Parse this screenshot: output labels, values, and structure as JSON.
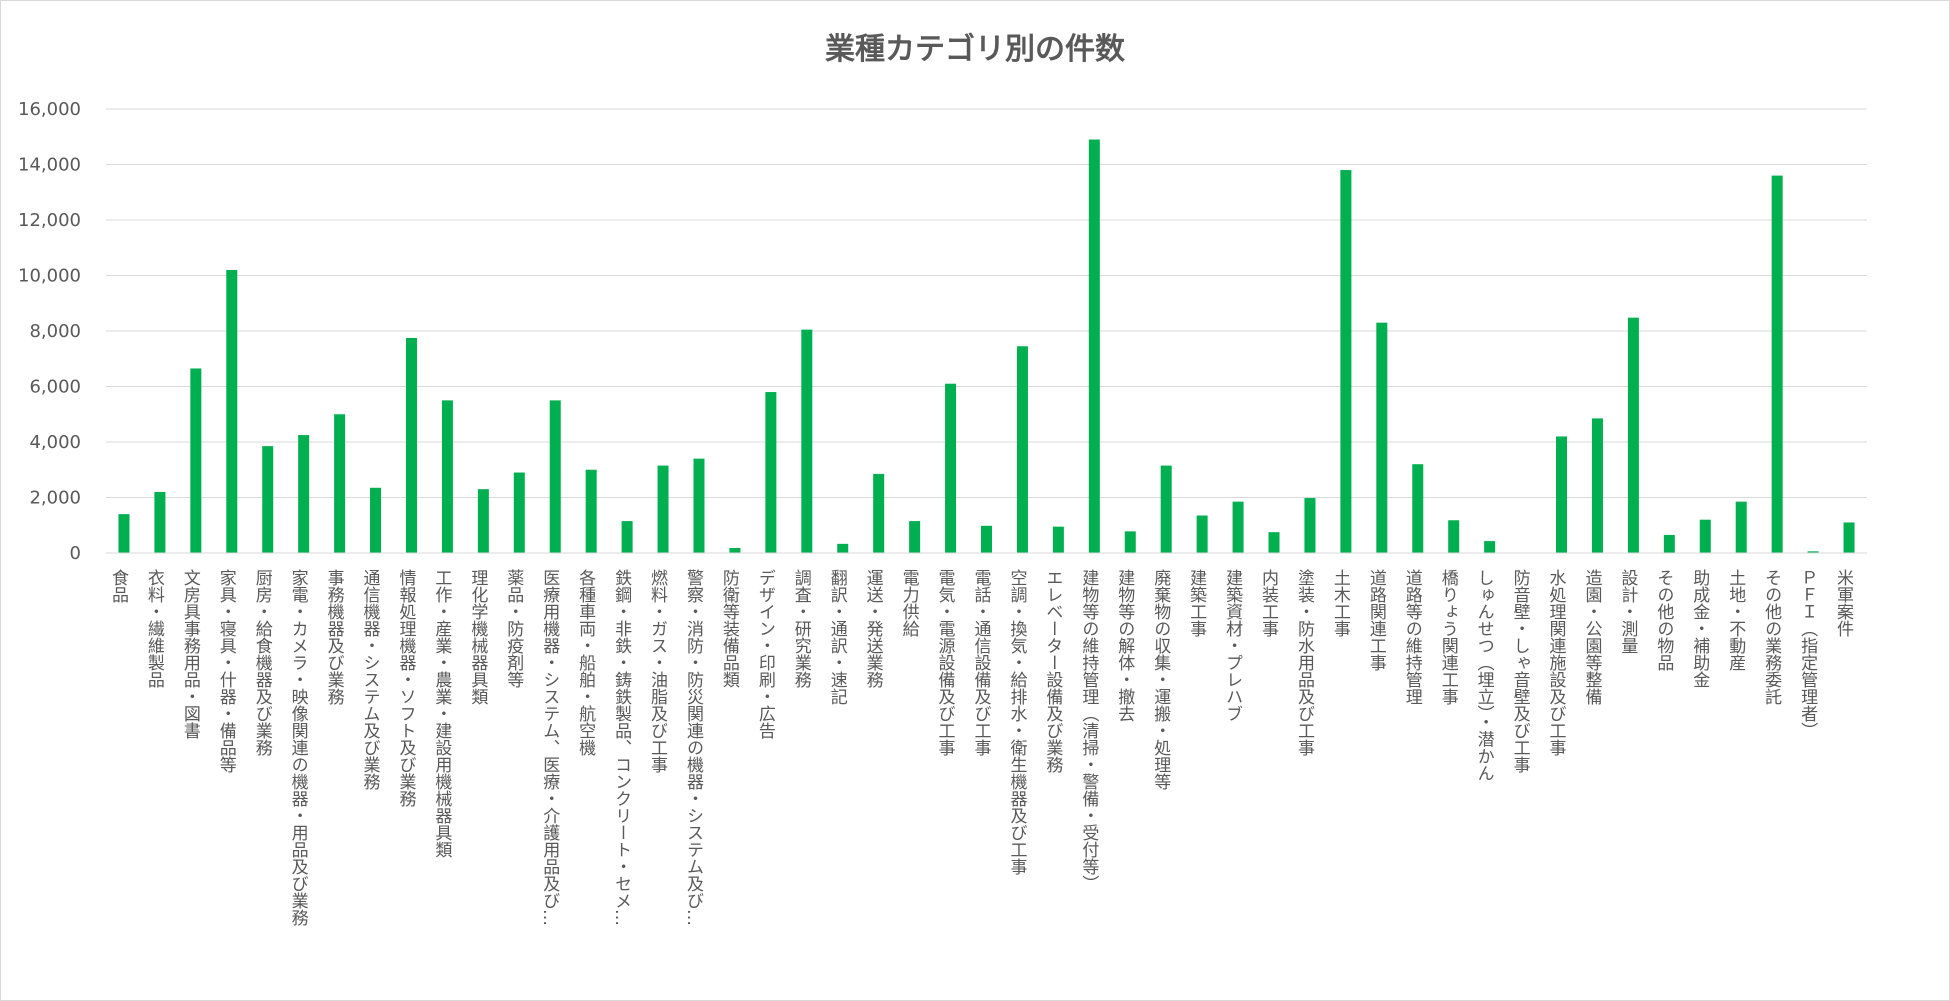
{
  "chart_data": {
    "type": "bar",
    "title": "業種カテゴリ別の件数",
    "xlabel": "",
    "ylabel": "",
    "ylim": [
      0,
      16000
    ],
    "yticks": [
      "0",
      "2,000",
      "4,000",
      "6,000",
      "8,000",
      "10,000",
      "12,000",
      "14,000",
      "16,000"
    ],
    "grid": true,
    "legend": "none",
    "bar_color": "#00b050",
    "categories": [
      "食品",
      "衣料・繊維製品",
      "文房具事務用品・図書",
      "家具・寝具・什器・備品等",
      "厨房・給食機器及び業務",
      "家電・カメラ・映像関連の機器・用品及び業務",
      "事務機器及び業務",
      "通信機器・システム及び業務",
      "情報処理機器・ソフト及び業務",
      "工作・産業・農業・建設用機械器具類",
      "理化学機械器具類",
      "薬品・防疫剤等",
      "医療用機器・システム、医療・介護用品及び…",
      "各種車両・船舶・航空機",
      "鉄鋼・非鉄・鋳鉄製品、コンクリート・セメ…",
      "燃料・ガス・油脂及び工事",
      "警察・消防・防災関連の機器・システム及び…",
      "防衛等装備品類",
      "デザイン・印刷・広告",
      "調査・研究業務",
      "翻訳・通訳・速記",
      "運送・発送業務",
      "電力供給",
      "電気・電源設備及び工事",
      "電話・通信設備及び工事",
      "空調・換気・給排水・衛生機器及び工事",
      "エレベーター設備及び業務",
      "建物等の維持管理（清掃・警備・受付等）",
      "建物等の解体・撤去",
      "廃棄物の収集・運搬・処理等",
      "建築工事",
      "建築資材・プレハブ",
      "内装工事",
      "塗装・防水用品及び工事",
      "土木工事",
      "道路関連工事",
      "道路等の維持管理",
      "橋りょう関連工事",
      "しゅんせつ（埋立）・潜かん",
      "防音壁・しゃ音壁及び工事",
      "水処理関連施設及び工事",
      "造園・公園等整備",
      "設計・測量",
      "その他の物品",
      "助成金・補助金",
      "土地・不動産",
      "その他の業務委託",
      "ＰＦＩ（指定管理者）",
      "米軍案件"
    ],
    "values": [
      1400,
      2200,
      6650,
      10200,
      3850,
      4250,
      5000,
      2350,
      7750,
      5500,
      2300,
      2900,
      5500,
      3000,
      1150,
      3150,
      3400,
      180,
      5800,
      8050,
      330,
      2850,
      1150,
      6100,
      980,
      7450,
      950,
      14900,
      780,
      3150,
      1350,
      1850,
      750,
      1980,
      13800,
      8300,
      3200,
      1180,
      430,
      0,
      4200,
      4850,
      8480,
      650,
      1200,
      1850,
      13600,
      60,
      1100
    ]
  }
}
